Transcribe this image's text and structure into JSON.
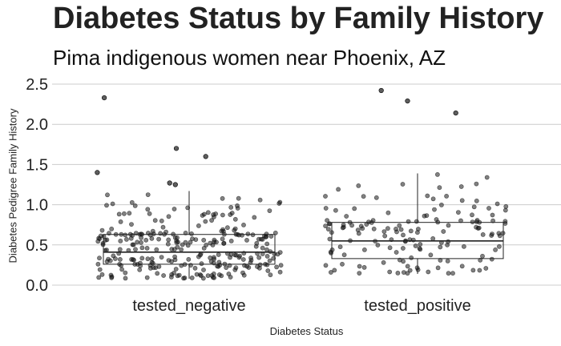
{
  "chart_data": {
    "type": "boxplot-jitter",
    "title": "Diabetes Status by Family History",
    "subtitle": "Pima indigenous women near Phoenix, AZ",
    "xlabel": "Diabetes Status",
    "ylabel": "Diabetes Pedigree Family History",
    "categories": [
      "tested_negative",
      "tested_positive"
    ],
    "ylim": [
      0.0,
      2.5
    ],
    "yticks": [
      "0.0",
      "0.5",
      "1.0",
      "1.5",
      "2.0",
      "2.5"
    ],
    "grid": "horizontal",
    "colors": {
      "points": "#1a1a1a",
      "box": "#222222",
      "grid": "#cccccc"
    },
    "boxes": [
      {
        "category": "tested_negative",
        "min": 0.08,
        "q1": 0.26,
        "median": 0.41,
        "q3": 0.63,
        "max": 1.17
      },
      {
        "category": "tested_positive",
        "min": 0.14,
        "q1": 0.33,
        "median": 0.55,
        "q3": 0.78,
        "max": 1.39
      }
    ],
    "outliers": [
      {
        "category": "tested_negative",
        "values": [
          2.33,
          1.7,
          1.6,
          1.4,
          1.27,
          1.25
        ]
      },
      {
        "category": "tested_positive",
        "values": [
          2.42,
          2.29,
          2.14
        ]
      }
    ],
    "point_counts": {
      "tested_negative": 280,
      "tested_positive": 150
    }
  }
}
